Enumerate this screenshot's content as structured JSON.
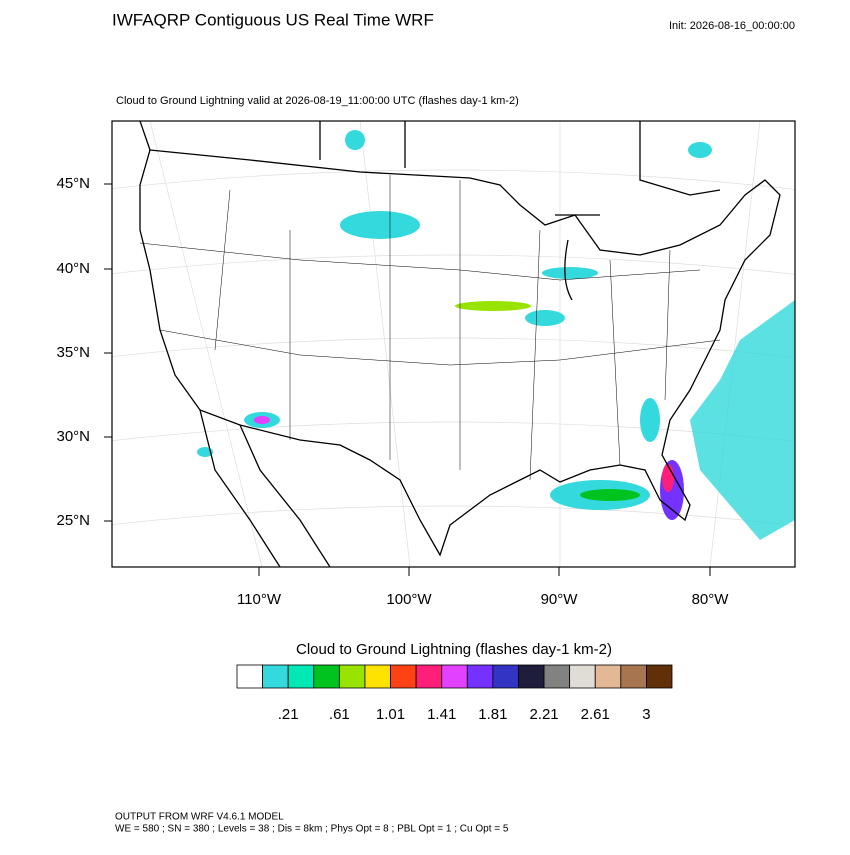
{
  "header": {
    "title": "IWFAQRP Contiguous US Real Time WRF",
    "init": "Init: 2026-08-16_00:00:00"
  },
  "map": {
    "subtitle": "Cloud to Ground Lightning valid at 2026-08-19_11:00:00 UTC   (flashes day-1 km-2)",
    "lat_labels": [
      "45°N",
      "40°N",
      "35°N",
      "30°N",
      "25°N"
    ],
    "lon_labels": [
      "110°W",
      "100°W",
      "90°W",
      "80°W"
    ]
  },
  "legend": {
    "title": "Cloud to Ground Lightning  (flashes day-1 km-2)",
    "colors": [
      "#ffffff",
      "#33d9dc",
      "#00e8b4",
      "#00c31f",
      "#98e400",
      "#ffe200",
      "#ff4214",
      "#ff1f78",
      "#e241ff",
      "#7431ff",
      "#3333c4",
      "#1e1e3c",
      "#828282",
      "#e0ddd7",
      "#e3b894",
      "#a77550",
      "#613009"
    ],
    "labels": [
      ".21",
      ".61",
      "1.01",
      "1.41",
      "1.81",
      "2.21",
      "2.61",
      "3"
    ]
  },
  "footer": {
    "line1": "OUTPUT FROM WRF V4.6.1 MODEL",
    "line2": "WE = 580 ; SN = 380 ; Levels = 38 ; Dis = 8km ; Phys Opt = 8 ; PBL Opt = 1 ; Cu Opt = 5"
  }
}
